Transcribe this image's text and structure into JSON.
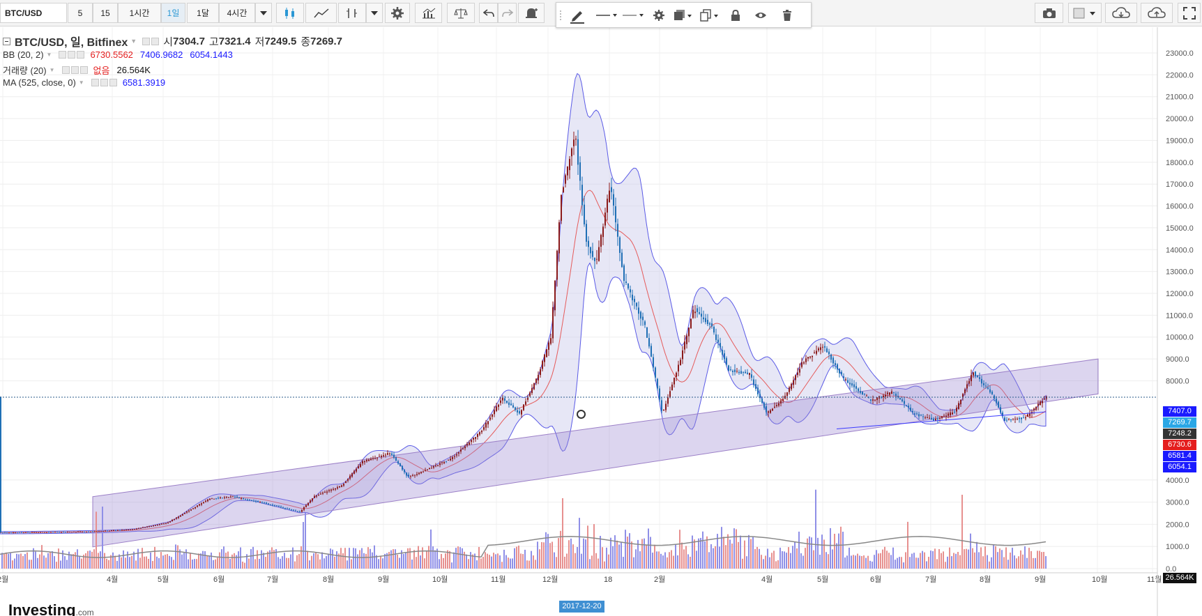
{
  "toolbar": {
    "symbol": "BTC/USD",
    "intervals": [
      "5",
      "15",
      "1시간",
      "1일",
      "1달",
      "4시간"
    ],
    "active_interval": "1일"
  },
  "legend": {
    "title": "BTC/USD, 일, Bitfinex",
    "open_label": "시",
    "open": "7304.7",
    "high_label": "고",
    "high": "7321.4",
    "low_label": "저",
    "low": "7249.5",
    "close_label": "종",
    "close": "7269.7",
    "bb": {
      "name": "BB (20, 2)",
      "v1": "6730.5562",
      "v2": "7406.9682",
      "v3": "6054.1443"
    },
    "vol": {
      "name": "거래량 (20)",
      "v1": "없음",
      "v2": "26.564K"
    },
    "ma": {
      "name": "MA (525, close, 0)",
      "v1": "6581.3919"
    }
  },
  "price_axis": {
    "ticks": [
      "23000.0",
      "22000.0",
      "21000.0",
      "20000.0",
      "19000.0",
      "18000.0",
      "17000.0",
      "16000.0",
      "15000.0",
      "14000.0",
      "13000.0",
      "12000.0",
      "11000.0",
      "10000.0",
      "9000.0",
      "8000.0",
      "4000.0",
      "3000.0",
      "2000.0",
      "1000.0",
      "0.0"
    ],
    "tags": [
      {
        "text": "7407.0",
        "color": "#1a1aff"
      },
      {
        "text": "7269.7",
        "color": "#2aa7e6"
      },
      {
        "text": "7248.2",
        "color": "#333333"
      },
      {
        "text": "6730.6",
        "color": "#e41e1e"
      },
      {
        "text": "6581.4",
        "color": "#1a1aff"
      },
      {
        "text": "6054.1",
        "color": "#1a1aff"
      },
      {
        "text": "26.564K",
        "color": "#111111"
      }
    ]
  },
  "time_axis": {
    "labels": [
      "2월",
      "4월",
      "5월",
      "6월",
      "7월",
      "8월",
      "9월",
      "10월",
      "11월",
      "12월",
      "18",
      "2월",
      "4월",
      "5월",
      "6월",
      "7월",
      "8월",
      "9월",
      "10월",
      "11월"
    ],
    "crosshair_date": "2017-12-20"
  },
  "logo": {
    "text": "Investing",
    "suffix": ".com"
  },
  "colors": {
    "up": "#8b1a1a",
    "down": "#1f6fb5",
    "bb_fill": "#c9c9ec",
    "channel": "#9b7fc7"
  },
  "chart_data": {
    "type": "candlestick",
    "x": [
      "2017-02",
      "2017-03",
      "2017-04",
      "2017-05",
      "2017-06",
      "2017-07",
      "2017-08",
      "2017-09",
      "2017-10",
      "2017-11",
      "2017-12",
      "2018-01",
      "2018-02",
      "2018-03",
      "2018-04",
      "2018-05",
      "2018-06",
      "2018-07",
      "2018-08",
      "2018-09"
    ],
    "close": [
      1100,
      1150,
      1350,
      2300,
      2500,
      2800,
      4700,
      4300,
      6400,
      10000,
      14000,
      10500,
      9500,
      7000,
      9200,
      7500,
      6300,
      7700,
      7000,
      7270
    ],
    "high": [
      1200,
      1300,
      1400,
      2700,
      3000,
      2900,
      4800,
      5000,
      6500,
      11500,
      19500,
      17100,
      11500,
      11700,
      9900,
      9900,
      7700,
      8400,
      7500,
      7420
    ],
    "ylim": [
      0,
      23500
    ]
  }
}
